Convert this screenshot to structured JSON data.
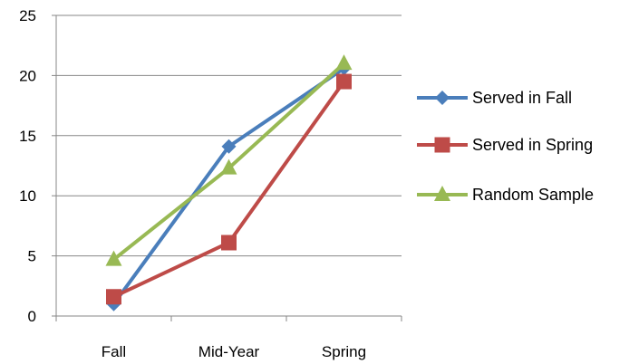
{
  "chart_data": {
    "type": "line",
    "categories": [
      "Fall",
      "Mid-Year",
      "Spring"
    ],
    "series": [
      {
        "name": "Served in Fall",
        "values": [
          1.0,
          14.1,
          20.6
        ],
        "color": "#4A7EBB",
        "marker": "diamond"
      },
      {
        "name": "Served in Spring",
        "values": [
          1.6,
          6.1,
          19.5
        ],
        "color": "#BE4B48",
        "marker": "square"
      },
      {
        "name": "Random Sample",
        "values": [
          4.7,
          12.3,
          21.0
        ],
        "color": "#98B954",
        "marker": "triangle"
      }
    ],
    "ylim": [
      0,
      25
    ],
    "yticks": [
      0,
      5,
      10,
      15,
      20,
      25
    ],
    "grid": true,
    "legend": "right"
  }
}
